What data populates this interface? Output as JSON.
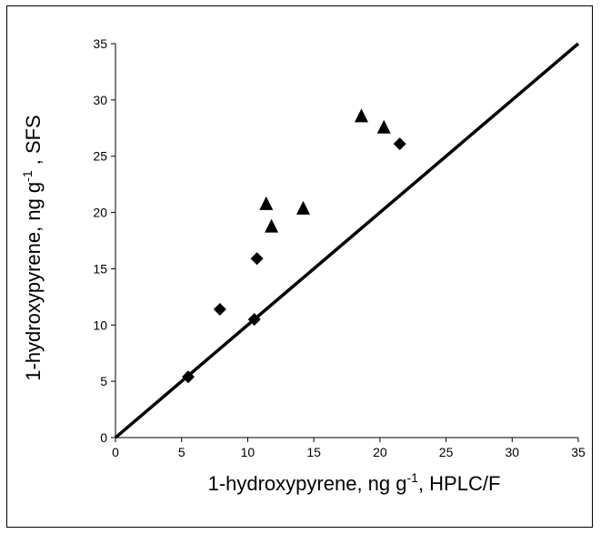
{
  "chart_data": {
    "type": "scatter",
    "xlabel": {
      "pre": "1-hydroxypyrene, ng g",
      "sup": "-1",
      "post": ", HPLC/F"
    },
    "ylabel": {
      "pre": "1-hydroxypyrene, ng g",
      "sup": "-1",
      "post": " , SFS"
    },
    "xlim": [
      0,
      35
    ],
    "ylim": [
      0,
      35
    ],
    "xticks": [
      0,
      5,
      10,
      15,
      20,
      25,
      30,
      35
    ],
    "yticks": [
      0,
      5,
      10,
      15,
      20,
      25,
      30,
      35
    ],
    "grid": false,
    "reference_line": {
      "from": [
        0,
        0
      ],
      "to": [
        35,
        35
      ]
    },
    "series": [
      {
        "marker": "diamond",
        "color": "#000000",
        "points": [
          [
            5.5,
            5.4
          ],
          [
            7.9,
            11.4
          ],
          [
            10.5,
            10.5
          ],
          [
            10.7,
            15.9
          ],
          [
            21.5,
            26.1
          ]
        ]
      },
      {
        "marker": "triangle",
        "color": "#000000",
        "points": [
          [
            11.4,
            20.7
          ],
          [
            11.8,
            18.7
          ],
          [
            14.2,
            20.3
          ],
          [
            18.6,
            28.5
          ],
          [
            20.3,
            27.5
          ]
        ]
      }
    ]
  }
}
